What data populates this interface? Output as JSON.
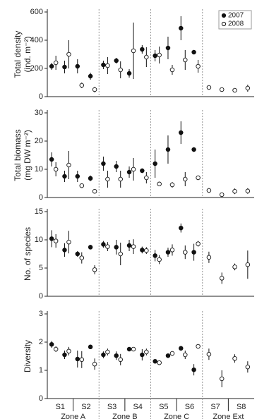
{
  "chart_data": [
    {
      "type": "errorbar",
      "ylabel": [
        "Total density",
        "(ind. m⁻²)"
      ],
      "ylim": [
        0,
        600
      ],
      "yticks": [
        0,
        200,
        400,
        600
      ],
      "legend": "upper right",
      "categories": [
        null,
        null,
        null,
        null,
        null,
        null,
        null,
        null,
        null,
        null,
        null,
        null,
        null,
        null,
        null,
        null
      ],
      "series": [
        {
          "name": "2007",
          "color": "#111",
          "filled": true,
          "values": [
            215,
            210,
            215,
            145,
            225,
            255,
            165,
            335,
            290,
            345,
            485,
            315,
            null,
            null,
            null,
            null
          ],
          "errors": [
            25,
            45,
            50,
            25,
            30,
            20,
            30,
            30,
            40,
            80,
            85,
            10,
            null,
            null,
            null,
            null
          ]
        },
        {
          "name": "2008",
          "color": "#111",
          "filled": false,
          "values": [
            240,
            300,
            80,
            50,
            220,
            190,
            325,
            280,
            295,
            190,
            260,
            215,
            65,
            50,
            45,
            60
          ],
          "errors": [
            50,
            100,
            20,
            20,
            60,
            60,
            200,
            70,
            60,
            35,
            70,
            45,
            15,
            15,
            15,
            25
          ]
        }
      ]
    },
    {
      "type": "errorbar",
      "ylabel": [
        "Total biomass",
        "(mg DW m⁻²)"
      ],
      "ylim": [
        0,
        30
      ],
      "yticks": [
        0,
        10,
        20,
        30
      ],
      "categories": [
        null,
        null,
        null,
        null,
        null,
        null,
        null,
        null,
        null,
        null,
        null,
        null,
        null,
        null,
        null,
        null
      ],
      "series": [
        {
          "name": "2007",
          "color": "#111",
          "filled": true,
          "values": [
            13.5,
            7.5,
            7.5,
            6.8,
            12,
            11,
            9,
            9.5,
            12,
            17,
            23,
            17,
            null,
            null,
            null,
            null
          ],
          "errors": [
            2.5,
            2,
            2,
            1,
            2.5,
            2,
            2,
            0.8,
            5,
            5,
            4,
            0.8,
            null,
            null,
            null,
            null
          ]
        },
        {
          "name": "2008",
          "color": "#111",
          "filled": false,
          "values": [
            10,
            11.5,
            4.2,
            2.2,
            6.5,
            6.5,
            10,
            7,
            4.8,
            4.5,
            6.5,
            7,
            2.5,
            1,
            2.2,
            2.3
          ],
          "errors": [
            2.5,
            5,
            0.8,
            0.4,
            3,
            3,
            4,
            2,
            0.6,
            1,
            2.5,
            0.8,
            0.8,
            0.5,
            1,
            1
          ]
        }
      ]
    },
    {
      "type": "errorbar",
      "ylabel": [
        "No. of species"
      ],
      "ylim": [
        0,
        15
      ],
      "yticks": [
        0,
        5,
        10,
        15
      ],
      "categories": [
        null,
        null,
        null,
        null,
        null,
        null,
        null,
        null,
        null,
        null,
        null,
        null,
        null,
        null,
        null,
        null
      ],
      "series": [
        {
          "name": "2007",
          "color": "#111",
          "filled": true,
          "values": [
            10.2,
            8.2,
            7.5,
            8.7,
            9.2,
            8.7,
            9,
            8.2,
            7.2,
            7.8,
            12.1,
            7.8,
            null,
            null,
            null,
            null
          ],
          "errors": [
            1.5,
            1.2,
            0.5,
            0.4,
            0.6,
            1.3,
            1,
            0.6,
            1,
            0.8,
            0.8,
            1.5,
            null,
            null,
            null,
            null
          ]
        },
        {
          "name": "2008",
          "color": "#111",
          "filled": false,
          "values": [
            9.8,
            9.6,
            6.8,
            4.7,
            8.8,
            7.5,
            8.8,
            8.1,
            6.5,
            8.2,
            7.8,
            9.3,
            6.9,
            3.2,
            5.2,
            5.6
          ],
          "errors": [
            1.2,
            2,
            1,
            0.8,
            0.8,
            2,
            1.3,
            0.6,
            0.8,
            1,
            1.2,
            0.5,
            1,
            1,
            0.6,
            2.5
          ]
        }
      ]
    },
    {
      "type": "errorbar",
      "ylabel": [
        "Diversity"
      ],
      "ylim": [
        0,
        3
      ],
      "yticks": [
        0,
        1,
        2,
        3
      ],
      "categories": [
        null,
        null,
        null,
        null,
        null,
        null,
        null,
        null,
        null,
        null,
        null,
        null,
        null,
        null,
        null,
        null
      ],
      "stations": [
        "S1",
        "S2",
        "S3",
        "S4",
        "S5",
        "S6",
        "S7",
        "S8"
      ],
      "zones": [
        "Zone A",
        "Zone B",
        "Zone C",
        "Zone Ext"
      ],
      "series": [
        {
          "name": "2007",
          "color": "#111",
          "filled": true,
          "values": [
            1.92,
            1.55,
            1.4,
            1.83,
            1.55,
            1.52,
            1.75,
            1.55,
            1.32,
            1.52,
            1.78,
            1.02,
            null,
            null,
            null,
            null
          ],
          "errors": [
            0.12,
            0.15,
            0.3,
            0.06,
            0.12,
            0.15,
            0.06,
            0.2,
            0.06,
            0.06,
            0.08,
            0.2,
            null,
            null,
            null,
            null
          ]
        },
        {
          "name": "2008",
          "color": "#111",
          "filled": false,
          "values": [
            1.75,
            1.68,
            1.38,
            1.22,
            1.65,
            1.38,
            1.75,
            1.65,
            1.27,
            1.6,
            1.55,
            1.85,
            1.57,
            0.7,
            1.42,
            1.12
          ],
          "errors": [
            0.1,
            0.15,
            0.3,
            0.2,
            0.12,
            0.2,
            0.05,
            0.12,
            0.08,
            0.08,
            0.15,
            0.05,
            0.2,
            0.3,
            0.15,
            0.2
          ]
        }
      ]
    }
  ]
}
